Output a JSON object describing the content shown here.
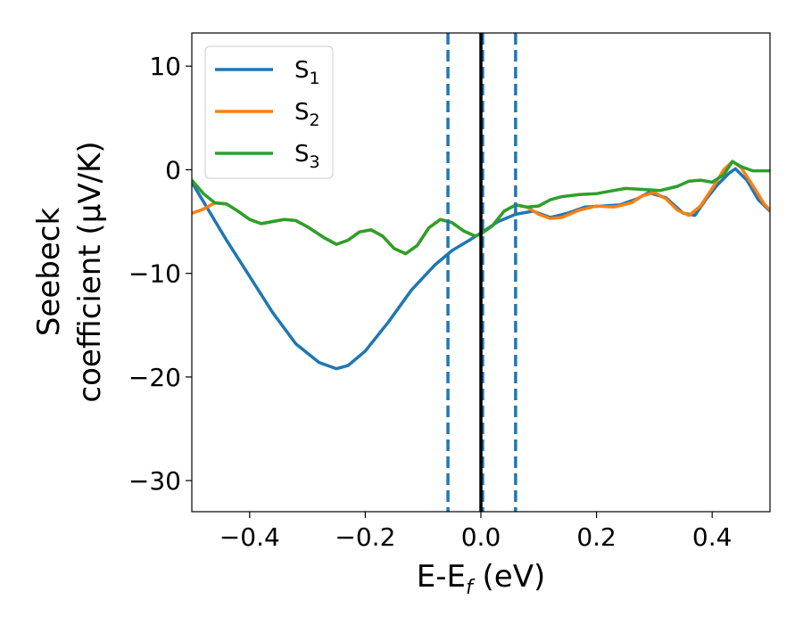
{
  "chart_data": {
    "type": "line",
    "xlabel": {
      "main": "E-E",
      "sub": "f",
      "unit": " (eV)"
    },
    "ylabel": {
      "line1": "Seebeck",
      "line2": "coefficient  (μV/K)"
    },
    "xlim": [
      -0.5,
      0.5
    ],
    "ylim": [
      -33,
      13.2
    ],
    "xticks": [
      {
        "value": -0.4,
        "label": "−0.4"
      },
      {
        "value": -0.2,
        "label": "−0.2"
      },
      {
        "value": 0.0,
        "label": "0.0"
      },
      {
        "value": 0.2,
        "label": "0.2"
      },
      {
        "value": 0.4,
        "label": "0.4"
      }
    ],
    "yticks": [
      {
        "value": 10,
        "label": "10"
      },
      {
        "value": 0,
        "label": "0"
      },
      {
        "value": -10,
        "label": "−10"
      },
      {
        "value": -20,
        "label": "−20"
      },
      {
        "value": -30,
        "label": "−30"
      }
    ],
    "grid": false,
    "legend_position": "top-left",
    "series": [
      {
        "name": "S",
        "subscript": "1",
        "color": "#1f77b4",
        "points": [
          [
            -0.5,
            -1.2
          ],
          [
            -0.47,
            -4.0
          ],
          [
            -0.44,
            -6.8
          ],
          [
            -0.4,
            -10.3
          ],
          [
            -0.36,
            -13.8
          ],
          [
            -0.32,
            -16.8
          ],
          [
            -0.28,
            -18.6
          ],
          [
            -0.25,
            -19.2
          ],
          [
            -0.23,
            -18.9
          ],
          [
            -0.2,
            -17.5
          ],
          [
            -0.16,
            -14.7
          ],
          [
            -0.12,
            -11.6
          ],
          [
            -0.08,
            -9.2
          ],
          [
            -0.05,
            -7.8
          ],
          [
            -0.02,
            -6.8
          ],
          [
            0.0,
            -6.1
          ],
          [
            0.03,
            -5.0
          ],
          [
            0.06,
            -4.3
          ],
          [
            0.09,
            -4.0
          ],
          [
            0.12,
            -4.6
          ],
          [
            0.15,
            -4.2
          ],
          [
            0.18,
            -3.6
          ],
          [
            0.21,
            -3.5
          ],
          [
            0.24,
            -3.4
          ],
          [
            0.27,
            -2.8
          ],
          [
            0.29,
            -2.2
          ],
          [
            0.32,
            -2.7
          ],
          [
            0.35,
            -4.2
          ],
          [
            0.37,
            -4.4
          ],
          [
            0.39,
            -2.8
          ],
          [
            0.41,
            -1.4
          ],
          [
            0.43,
            -0.3
          ],
          [
            0.44,
            0.1
          ],
          [
            0.46,
            -1.0
          ],
          [
            0.48,
            -2.9
          ],
          [
            0.5,
            -4.0
          ]
        ]
      },
      {
        "name": "S",
        "subscript": "2",
        "color": "#ff7f0e",
        "points": [
          [
            -0.5,
            -4.2
          ],
          [
            -0.48,
            -3.8
          ],
          [
            -0.46,
            -3.2
          ],
          [
            -0.44,
            -3.3
          ],
          [
            -0.42,
            -4.0
          ],
          [
            -0.4,
            -4.8
          ],
          [
            -0.38,
            -5.2
          ],
          [
            -0.36,
            -5.0
          ],
          [
            -0.34,
            -4.8
          ],
          [
            -0.32,
            -4.9
          ],
          [
            -0.3,
            -5.5
          ],
          [
            -0.27,
            -6.6
          ],
          [
            -0.25,
            -7.2
          ],
          [
            -0.23,
            -6.8
          ],
          [
            -0.21,
            -6.0
          ],
          [
            -0.19,
            -5.8
          ],
          [
            -0.17,
            -6.4
          ],
          [
            -0.15,
            -7.6
          ],
          [
            -0.13,
            -8.1
          ],
          [
            -0.11,
            -7.3
          ],
          [
            -0.09,
            -5.6
          ],
          [
            -0.07,
            -4.8
          ],
          [
            -0.05,
            -5.1
          ],
          [
            -0.03,
            -5.9
          ],
          [
            -0.01,
            -6.4
          ],
          [
            0.0,
            -6.2
          ],
          [
            0.02,
            -5.4
          ],
          [
            0.04,
            -4.0
          ],
          [
            0.06,
            -3.4
          ],
          [
            0.08,
            -3.6
          ],
          [
            0.1,
            -4.3
          ],
          [
            0.12,
            -4.7
          ],
          [
            0.14,
            -4.6
          ],
          [
            0.17,
            -3.9
          ],
          [
            0.2,
            -3.5
          ],
          [
            0.23,
            -3.6
          ],
          [
            0.26,
            -3.2
          ],
          [
            0.28,
            -2.5
          ],
          [
            0.3,
            -2.2
          ],
          [
            0.32,
            -2.8
          ],
          [
            0.34,
            -3.9
          ],
          [
            0.36,
            -4.4
          ],
          [
            0.38,
            -3.5
          ],
          [
            0.4,
            -1.8
          ],
          [
            0.42,
            0.0
          ],
          [
            0.435,
            0.8
          ],
          [
            0.45,
            0.2
          ],
          [
            0.47,
            -1.5
          ],
          [
            0.49,
            -3.3
          ],
          [
            0.5,
            -3.9
          ]
        ]
      },
      {
        "name": "S",
        "subscript": "3",
        "color": "#2ca02c",
        "points": [
          [
            -0.5,
            -1.0
          ],
          [
            -0.48,
            -2.3
          ],
          [
            -0.46,
            -3.2
          ],
          [
            -0.44,
            -3.3
          ],
          [
            -0.42,
            -4.0
          ],
          [
            -0.4,
            -4.8
          ],
          [
            -0.38,
            -5.2
          ],
          [
            -0.36,
            -5.0
          ],
          [
            -0.34,
            -4.8
          ],
          [
            -0.32,
            -4.9
          ],
          [
            -0.3,
            -5.5
          ],
          [
            -0.27,
            -6.6
          ],
          [
            -0.25,
            -7.2
          ],
          [
            -0.23,
            -6.8
          ],
          [
            -0.21,
            -6.0
          ],
          [
            -0.19,
            -5.8
          ],
          [
            -0.17,
            -6.4
          ],
          [
            -0.15,
            -7.6
          ],
          [
            -0.13,
            -8.1
          ],
          [
            -0.11,
            -7.3
          ],
          [
            -0.09,
            -5.6
          ],
          [
            -0.07,
            -4.8
          ],
          [
            -0.05,
            -5.1
          ],
          [
            -0.03,
            -5.9
          ],
          [
            -0.01,
            -6.4
          ],
          [
            0.0,
            -6.2
          ],
          [
            0.02,
            -5.4
          ],
          [
            0.04,
            -4.0
          ],
          [
            0.06,
            -3.4
          ],
          [
            0.08,
            -3.6
          ],
          [
            0.1,
            -3.5
          ],
          [
            0.12,
            -2.9
          ],
          [
            0.14,
            -2.6
          ],
          [
            0.17,
            -2.4
          ],
          [
            0.2,
            -2.3
          ],
          [
            0.23,
            -2.0
          ],
          [
            0.25,
            -1.8
          ],
          [
            0.28,
            -1.9
          ],
          [
            0.31,
            -2.0
          ],
          [
            0.34,
            -1.6
          ],
          [
            0.36,
            -1.1
          ],
          [
            0.38,
            -1.0
          ],
          [
            0.4,
            -1.2
          ],
          [
            0.42,
            -0.5
          ],
          [
            0.435,
            0.8
          ],
          [
            0.45,
            0.3
          ],
          [
            0.47,
            -0.1
          ],
          [
            0.5,
            -0.1
          ]
        ]
      }
    ],
    "vlines": [
      {
        "x": -0.057,
        "color": "#1f77b4",
        "style": "dashed"
      },
      {
        "x": 0.003,
        "color": "#1f77b4",
        "style": "dashed"
      },
      {
        "x": 0.06,
        "color": "#1f77b4",
        "style": "dashed"
      },
      {
        "x": 0.0,
        "color": "#000000",
        "style": "solid"
      }
    ]
  }
}
